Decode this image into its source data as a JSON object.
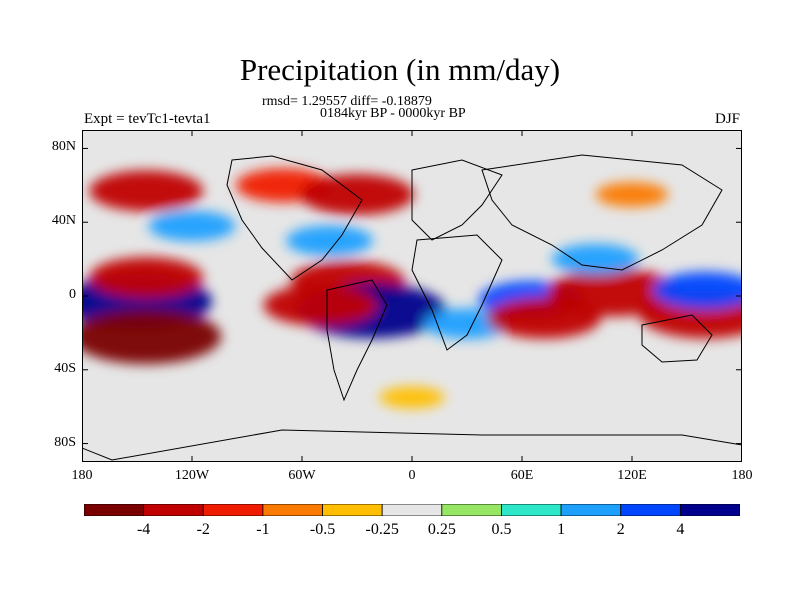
{
  "chart_data": {
    "type": "heatmap",
    "title": "Precipitation (in mm/day)",
    "stats_line": "rmsd= 1.29557 diff= -0.18879",
    "period_line": "0184kyr BP - 0000kyr BP",
    "left_label": "Expt = tevTc1-tevta1",
    "right_label": "DJF",
    "x_ticks": [
      "180",
      "120W",
      "60W",
      "0",
      "60E",
      "120E",
      "180"
    ],
    "y_ticks": [
      "80N",
      "40N",
      "0",
      "40S",
      "80S"
    ],
    "xlim": [
      -180,
      180
    ],
    "ylim": [
      -90,
      90
    ],
    "colorbar": {
      "levels": [
        "-4",
        "-2",
        "-1",
        "-0.5",
        "-0.25",
        "0.25",
        "0.5",
        "1",
        "2",
        "4"
      ],
      "colors": [
        "#7a0000",
        "#c00000",
        "#f01c00",
        "#fb7a00",
        "#ffbf00",
        "#e6e6e6",
        "#96e664",
        "#2ee6c8",
        "#1ea0ff",
        "#0046ff",
        "#00008c"
      ]
    },
    "anomaly_regions": [
      {
        "name": "central-pacific-wet",
        "lon": -150,
        "lat": -3,
        "value": 5
      },
      {
        "name": "south-pacific-dry-band",
        "lon": -145,
        "lat": -22,
        "value": -5
      },
      {
        "name": "north-pacific-dry-band",
        "lon": -145,
        "lat": 10,
        "value": -3
      },
      {
        "name": "north-pacific-wet",
        "lon": -120,
        "lat": 38,
        "value": 1.5
      },
      {
        "name": "north-pacific-storm-dry",
        "lon": -145,
        "lat": 57,
        "value": -3
      },
      {
        "name": "north-america-dry",
        "lon": -70,
        "lat": 60,
        "value": -2
      },
      {
        "name": "north-atlantic-dry",
        "lon": -30,
        "lat": 55,
        "value": -3
      },
      {
        "name": "north-atlantic-wet",
        "lon": -45,
        "lat": 30,
        "value": 1.5
      },
      {
        "name": "atlantic-itcz-dry",
        "lon": -35,
        "lat": 8,
        "value": -3
      },
      {
        "name": "south-atlantic-wet",
        "lon": -22,
        "lat": -8,
        "value": 5
      },
      {
        "name": "south-america-dry",
        "lon": -50,
        "lat": -5,
        "value": -3
      },
      {
        "name": "southern-africa-wet",
        "lon": 30,
        "lat": -15,
        "value": 1.5
      },
      {
        "name": "indian-ocean-wet",
        "lon": 65,
        "lat": -2,
        "value": 2.5
      },
      {
        "name": "indian-ocean-south-dry",
        "lon": 72,
        "lat": -12,
        "value": -3
      },
      {
        "name": "maritime-continent-dry",
        "lon": 110,
        "lat": 2,
        "value": -4
      },
      {
        "name": "west-pacific-dry",
        "lon": 160,
        "lat": -10,
        "value": -4
      },
      {
        "name": "west-pacific-wet",
        "lon": 160,
        "lat": 3,
        "value": 2.5
      },
      {
        "name": "north-west-pacific-wet",
        "lon": 100,
        "lat": 20,
        "value": 1.5
      },
      {
        "name": "siberia-dry",
        "lon": 120,
        "lat": 55,
        "value": -0.7
      },
      {
        "name": "southern-ocean-dry-band",
        "lon": 0,
        "lat": -55,
        "value": -0.3
      }
    ]
  }
}
